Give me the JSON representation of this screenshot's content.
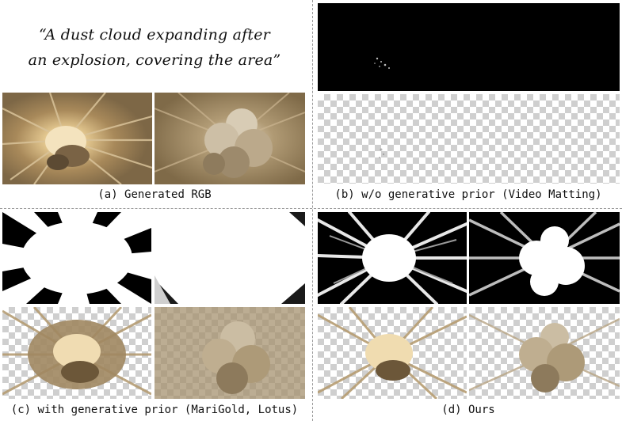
{
  "prompt": {
    "line1": "“A dust cloud expanding after",
    "line2": "an explosion, covering the area”"
  },
  "captions": {
    "a": "(a) Generated RGB",
    "b": "(b) w/o generative prior (Video Matting)",
    "c": "(c) with generative prior (MariGold, Lotus)",
    "d": "(d) Ours"
  },
  "colors": {
    "sand_bg": "#8a7552",
    "dust": "#cdb690",
    "matte_black": "#000000",
    "matte_white": "#ffffff",
    "divider": "#9a9a9a"
  }
}
